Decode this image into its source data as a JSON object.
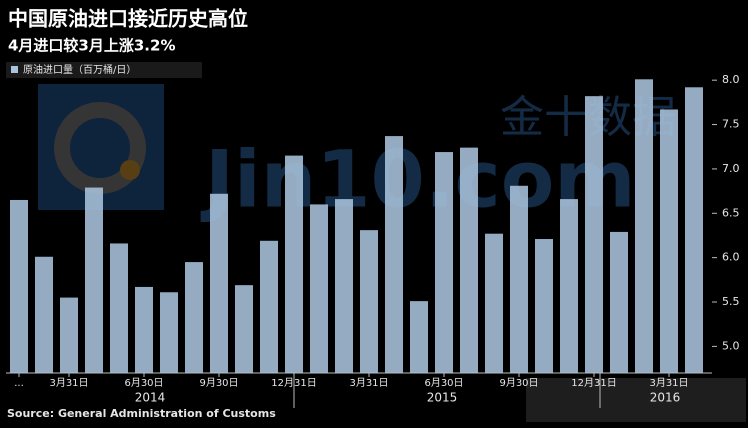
{
  "chart_data": {
    "type": "bar",
    "title": "中国原油进口接近历史高位",
    "subtitle": "4月进口较3月上涨3.2%",
    "legend_label": "原油进口量（百万桶/日）",
    "source": "Source:  General Administration of Customs",
    "watermark": [
      "金十数据",
      "Jin10.com"
    ],
    "categories": [
      "...",
      null,
      "3月31日",
      null,
      null,
      "6月30日",
      null,
      null,
      "9月30日",
      null,
      null,
      "12月31日",
      null,
      null,
      "3月31日",
      null,
      null,
      "6月30日",
      null,
      null,
      "9月30日",
      null,
      null,
      "12月31日",
      null,
      null,
      "3月31日",
      null
    ],
    "year_labels": [
      "2014",
      "2015",
      "2016"
    ],
    "values": [
      6.65,
      6.01,
      5.55,
      6.79,
      6.16,
      5.67,
      5.61,
      5.95,
      6.72,
      5.69,
      6.19,
      7.15,
      6.6,
      6.66,
      6.31,
      7.37,
      5.51,
      7.19,
      7.24,
      6.27,
      6.81,
      6.21,
      6.66,
      7.82,
      6.29,
      8.01,
      7.67,
      7.92
    ],
    "color": "#a9c3dc",
    "ylim": [
      4.7,
      8.25
    ],
    "yticks": [
      {
        "value": 5,
        "label": "5.0"
      },
      5.5,
      {
        "value": 6,
        "label": "6.0"
      },
      6.5,
      {
        "value": 7,
        "label": "7.0"
      },
      7.5,
      {
        "value": 8,
        "label": "8.0"
      }
    ],
    "grid": false
  }
}
